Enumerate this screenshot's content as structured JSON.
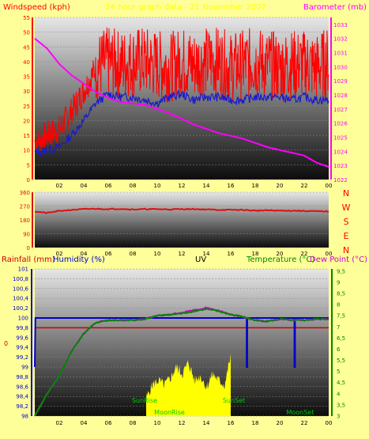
{
  "colors": {
    "background": "#ffff99",
    "windspeed": "#ff0000",
    "barometer": "#ff00ff",
    "wind_avg": "#1a1acc",
    "direction": "#dd1111",
    "rainfall": "#cc0000",
    "humidity": "#0000cc",
    "uv": "#000000",
    "temperature": "#008800",
    "dewpoint": "#cc00cc",
    "solar": "#ffff00",
    "axis_left_top": "#ff0000",
    "axis_right_top": "#ff00ff",
    "axis_right_bottom": "#008800"
  },
  "header": {
    "left": "Windspeed (kph)",
    "center": "24 hour graph data - 21 November 2007",
    "right": "Barometer (mb)"
  },
  "compass": [
    "N",
    "W",
    "S",
    "E",
    "N"
  ],
  "bottom_header": {
    "rainfall": "Rainfall (mm)",
    "humidity": "Humidity (%)",
    "uv": "UV",
    "temperature": "Temperature (°C)",
    "dewpoint": "Dew Point (°C)"
  },
  "annotations": {
    "sunrise": "SunRise",
    "sunset": "SunSet",
    "moonrise": "MoonRise",
    "moonset": "MoonSet"
  },
  "chart_data": [
    {
      "type": "line",
      "title": "24 hour graph data - 21 November 2007",
      "xlabel": "",
      "x_ticks": [
        "02",
        "04",
        "06",
        "08",
        "10",
        "12",
        "14",
        "16",
        "18",
        "20",
        "22",
        "00"
      ],
      "ylabel": "Windspeed (kph)",
      "ylim": [
        0,
        55
      ],
      "y_ticks": [
        0,
        5,
        10,
        15,
        20,
        25,
        30,
        35,
        40,
        45,
        50,
        55
      ],
      "y2label": "Barometer (mb)",
      "y2lim": [
        1022,
        1033.5
      ],
      "y2_ticks": [
        1022,
        1023,
        1024,
        1025,
        1026,
        1027,
        1028,
        1029,
        1030,
        1031,
        1032,
        1033
      ],
      "x_hours": [
        0,
        1,
        2,
        3,
        4,
        5,
        6,
        7,
        8,
        9,
        10,
        11,
        12,
        13,
        14,
        15,
        16,
        17,
        18,
        19,
        20,
        21,
        22,
        23,
        24
      ],
      "series": [
        {
          "name": "Windspeed (kph)",
          "axis": "left",
          "values": [
            13,
            15,
            17,
            23,
            30,
            38,
            40,
            39,
            40,
            40,
            39,
            38,
            40,
            39,
            40,
            40,
            38,
            39,
            40,
            39,
            38,
            39,
            39,
            38,
            40
          ]
        },
        {
          "name": "",
          "axis": "left",
          "values": [
            9,
            10,
            11,
            15,
            20,
            26,
            29,
            28,
            28,
            27,
            26,
            28,
            29,
            27,
            28,
            28,
            27,
            27,
            28,
            28,
            28,
            27,
            28,
            27,
            27
          ]
        },
        {
          "name": "Barometer (mb)",
          "axis": "right",
          "values": [
            1032.0,
            1031.3,
            1030.2,
            1029.4,
            1028.8,
            1028.2,
            1027.8,
            1027.5,
            1027.4,
            1027.3,
            1027.0,
            1026.7,
            1026.3,
            1025.9,
            1025.6,
            1025.3,
            1025.1,
            1024.9,
            1024.6,
            1024.3,
            1024.1,
            1023.9,
            1023.7,
            1023.2,
            1022.9
          ]
        }
      ]
    },
    {
      "type": "line",
      "x_ticks": [
        "02",
        "04",
        "06",
        "08",
        "10",
        "12",
        "14",
        "16",
        "18",
        "20",
        "22",
        "00"
      ],
      "ylim": [
        0,
        360
      ],
      "y_ticks": [
        0,
        90,
        180,
        270,
        360
      ],
      "series": [
        {
          "name": "",
          "values": [
            235,
            225,
            238,
            245,
            250,
            252,
            250,
            252,
            248,
            250,
            250,
            248,
            250,
            250,
            248,
            245,
            245,
            245,
            240,
            242,
            240,
            240,
            238,
            236,
            235
          ]
        }
      ]
    },
    {
      "type": "line",
      "x_ticks": [
        "02",
        "04",
        "06",
        "08",
        "10",
        "12",
        "14",
        "16",
        "18",
        "20",
        "22",
        "00"
      ],
      "y_left_label": "Humidity (%)",
      "y_left_lim": [
        98,
        101.0
      ],
      "y_left_ticks": [
        "98",
        "98,2",
        "98,4",
        "98,6",
        "98,8",
        "99",
        "99,2",
        "99,4",
        "99,6",
        "99,8",
        "100",
        "100,2",
        "100,4",
        "100,6",
        "100,8",
        "101"
      ],
      "rainfall_label": "Rainfall (mm)",
      "rainfall_value": "0",
      "y_right_label": "Temperature (°C)",
      "y_right_lim": [
        3,
        9.6
      ],
      "y_right_ticks": [
        "3",
        "3,5",
        "4",
        "4,5",
        "5",
        "5,5",
        "6",
        "6,5",
        "7",
        "7,5",
        "8",
        "8,5",
        "9",
        "9,5"
      ],
      "series": [
        {
          "name": "Humidity (%)",
          "axis": "left",
          "values": [
            100,
            100,
            100,
            100,
            100,
            100,
            100,
            100,
            100,
            100,
            100,
            100,
            100,
            100,
            100,
            100,
            100,
            100,
            100,
            100,
            100,
            100,
            100,
            100,
            100
          ],
          "dips": [
            {
              "x": 0.05,
              "to": 99
            },
            {
              "x": 17.3,
              "to": 99
            },
            {
              "x": 21.2,
              "to": 99
            }
          ]
        },
        {
          "name": "Temperature (°C)",
          "axis": "right",
          "values": [
            3.0,
            4.0,
            4.8,
            5.9,
            6.7,
            7.2,
            7.3,
            7.3,
            7.3,
            7.35,
            7.5,
            7.55,
            7.6,
            7.7,
            7.8,
            7.7,
            7.55,
            7.45,
            7.3,
            7.25,
            7.35,
            7.3,
            7.3,
            7.35,
            7.35
          ]
        },
        {
          "name": "Dew Point (°C)",
          "axis": "right",
          "values": [
            3.0,
            4.0,
            4.8,
            5.9,
            6.7,
            7.2,
            7.3,
            7.3,
            7.3,
            7.35,
            7.5,
            7.55,
            7.65,
            7.75,
            7.85,
            7.75,
            7.55,
            7.45,
            7.3,
            7.25,
            7.35,
            7.3,
            7.3,
            7.35,
            7.35
          ]
        },
        {
          "name": "Rainfall (mm)",
          "axis": "left",
          "values": [
            99.8,
            99.8,
            99.8,
            99.8,
            99.8,
            99.8,
            99.8,
            99.8,
            99.8,
            99.8,
            99.8,
            99.8,
            99.8,
            99.8,
            99.8,
            99.8,
            99.8,
            99.8,
            99.8,
            99.8,
            99.8,
            99.8,
            99.8,
            99.8,
            99.8
          ]
        },
        {
          "name": "Solar",
          "axis": "right",
          "x_start": 9.1,
          "x_end": 16.0,
          "values": [
            3.8,
            4.4,
            4.6,
            4.4,
            4.7,
            5.2,
            4.9,
            5.4,
            4.6,
            4.8,
            4.3,
            4.9,
            4.6,
            4.4,
            5.7
          ]
        }
      ],
      "events": [
        {
          "label": "SunRise",
          "x": 9.1
        },
        {
          "label": "SunSet",
          "x": 16.0
        },
        {
          "label": "MoonRise",
          "x": 11.0
        },
        {
          "label": "MoonSet",
          "x": 21.8
        }
      ]
    }
  ]
}
